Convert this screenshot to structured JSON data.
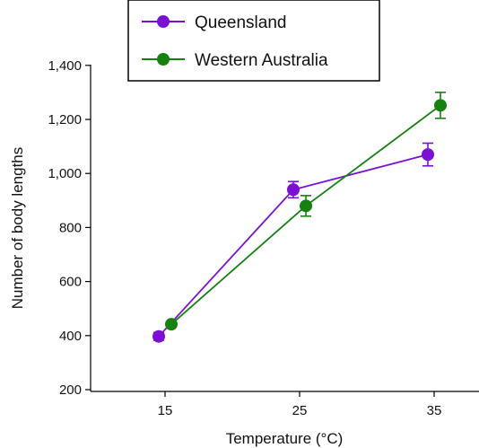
{
  "chart_data": {
    "type": "line",
    "xlabel": "Temperature (°C)",
    "ylabel": "Number of body lengths",
    "x": [
      15,
      25,
      35
    ],
    "xticks": [
      "15",
      "25",
      "35"
    ],
    "ylim": [
      200,
      1400
    ],
    "yticks": [
      "200",
      "400",
      "600",
      "800",
      "1,000",
      "1,200",
      "1,400"
    ],
    "grid": false,
    "legend_position": "top-center",
    "series": [
      {
        "name": "Queensland",
        "color": "#7b0fd6",
        "values": [
          397,
          940,
          1070
        ],
        "error": [
          14,
          30,
          42
        ]
      },
      {
        "name": "Western Australia",
        "color": "#13820f",
        "values": [
          442,
          880,
          1252
        ],
        "error": [
          10,
          38,
          48
        ]
      }
    ]
  }
}
